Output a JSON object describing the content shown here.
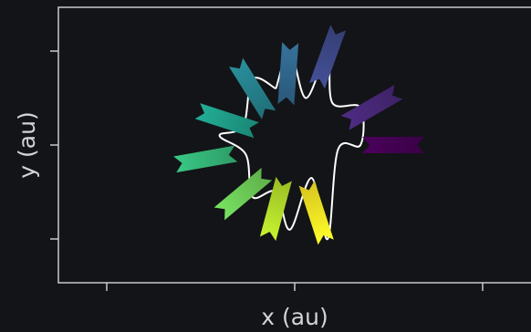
{
  "chart_data": {
    "type": "scatter",
    "title": "",
    "xlabel": "x (au)",
    "ylabel": "y (au)",
    "grid": false,
    "legend": "none",
    "x_ticks_labeled": false,
    "y_ticks_labeled": false,
    "colormap": "viridis",
    "xlim": [
      -2.5,
      2.5
    ],
    "ylim": [
      -1.5,
      1.5
    ],
    "trajectory": [
      [
        -0.2,
        0.6
      ],
      [
        -0.45,
        0.7
      ],
      [
        -0.55,
        0.2
      ],
      [
        -0.8,
        0.1
      ],
      [
        -0.52,
        -0.1
      ],
      [
        -0.45,
        -0.55
      ],
      [
        -0.2,
        -0.5
      ],
      [
        -0.05,
        -0.9
      ],
      [
        0.18,
        -0.35
      ],
      [
        0.35,
        -1.0
      ],
      [
        0.46,
        -0.05
      ],
      [
        0.7,
        0.0
      ],
      [
        0.7,
        0.4
      ],
      [
        0.4,
        0.45
      ],
      [
        0.35,
        0.98
      ],
      [
        0.12,
        0.5
      ],
      [
        -0.05,
        1.0
      ],
      [
        -0.2,
        0.6
      ]
    ],
    "markers": [
      {
        "x": 1.05,
        "y": 0.0,
        "angle_deg": 0,
        "color": "#440154"
      },
      {
        "x": 0.82,
        "y": 0.4,
        "angle_deg": -30,
        "color": "#482878"
      },
      {
        "x": 0.35,
        "y": 0.94,
        "angle_deg": -70,
        "color": "#3e4989"
      },
      {
        "x": -0.07,
        "y": 0.76,
        "angle_deg": 94,
        "color": "#31688e"
      },
      {
        "x": -0.45,
        "y": 0.6,
        "angle_deg": 58,
        "color": "#26828e"
      },
      {
        "x": -0.72,
        "y": 0.26,
        "angle_deg": 18,
        "color": "#1f9e89"
      },
      {
        "x": -0.95,
        "y": -0.15,
        "angle_deg": -10,
        "color": "#35b779"
      },
      {
        "x": -0.55,
        "y": -0.52,
        "angle_deg": -40,
        "color": "#6ece58"
      },
      {
        "x": -0.2,
        "y": -0.68,
        "angle_deg": -75,
        "color": "#b5de2b"
      },
      {
        "x": 0.23,
        "y": -0.72,
        "angle_deg": -108,
        "color": "#fde725"
      }
    ]
  }
}
